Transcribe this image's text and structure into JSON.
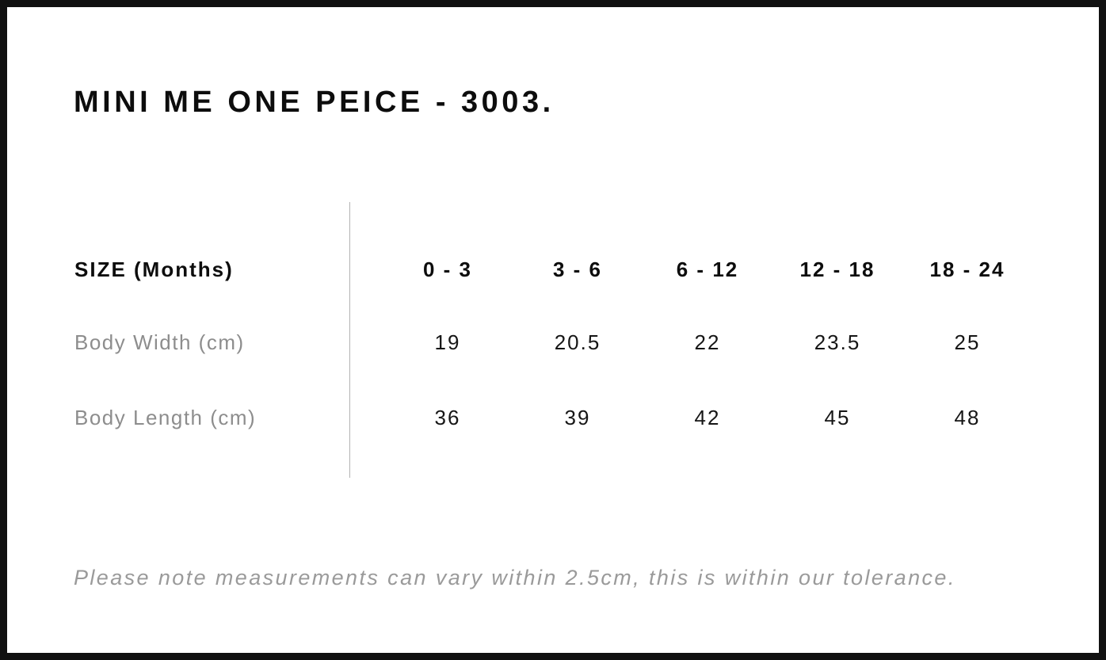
{
  "page": {
    "title": "MINI ME ONE PEICE - 3003.",
    "footnote": "Please note measurements can vary within 2.5cm, this is within our tolerance."
  },
  "chart_data": {
    "type": "table",
    "title": "MINI ME ONE PEICE - 3003.",
    "header_label": "SIZE (Months)",
    "columns": [
      "0 - 3",
      "3 - 6",
      "6 - 12",
      "12 - 18",
      "18 - 24"
    ],
    "rows": [
      {
        "label": "Body Width (cm)",
        "values": [
          "19",
          "20.5",
          "22",
          "23.5",
          "25"
        ]
      },
      {
        "label": "Body Length (cm)",
        "values": [
          "36",
          "39",
          "42",
          "45",
          "48"
        ]
      }
    ],
    "annotations": [
      "Please note measurements can vary within 2.5cm, this is within our tolerance."
    ]
  },
  "colors": {
    "text_primary": "#0d0d0d",
    "text_muted": "#8d8d8d",
    "frame_border": "#111111",
    "divider": "#b3b3b3"
  }
}
